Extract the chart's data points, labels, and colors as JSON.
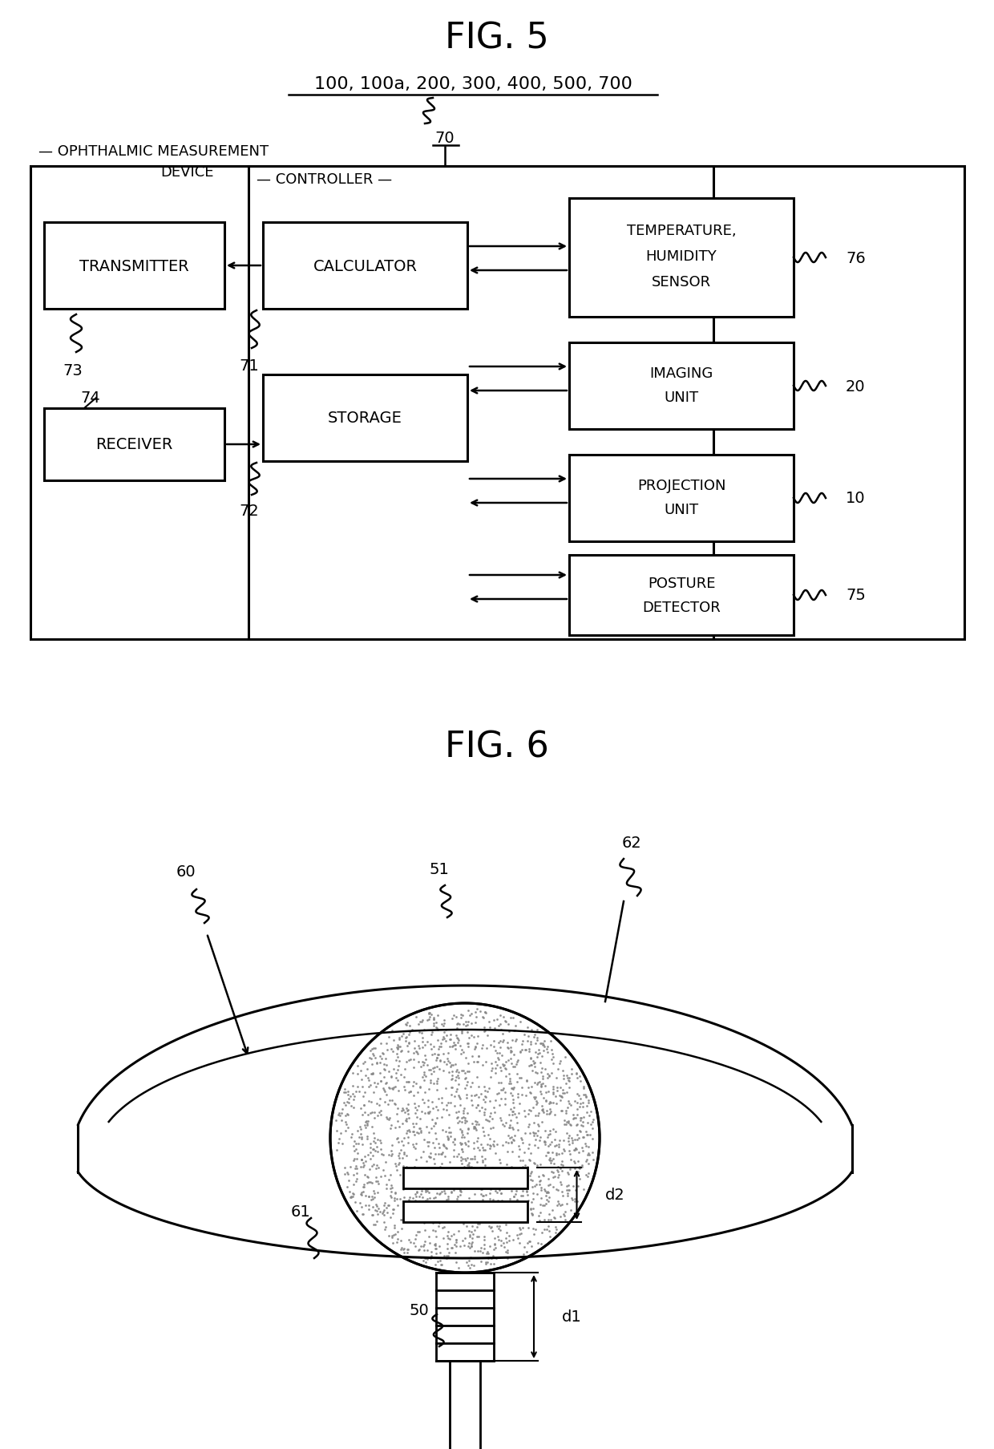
{
  "bg_color": "#ffffff",
  "fig_width": 12.4,
  "fig_height": 18.08,
  "fig5_title": "FIG. 5",
  "fig6_title": "FIG. 6",
  "ref_nums": "100, 100a, 200, 300, 400, 500, 700"
}
